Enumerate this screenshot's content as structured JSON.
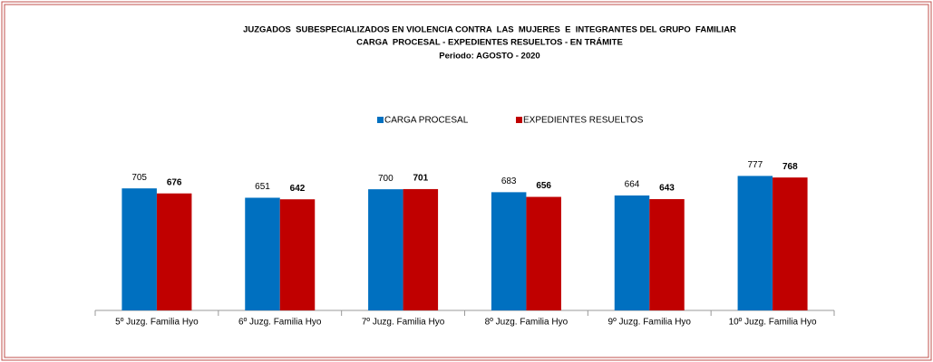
{
  "chart_data": {
    "type": "bar",
    "title": "JUZGADOS  SUBESPECIALIZADOS EN VIOLENCIA CONTRA  LAS  MUJERES  E  INTEGRANTES DEL GRUPO  FAMILIAR",
    "subtitle": "CARGA  PROCESAL - EXPEDIENTES RESUELTOS - EN TRÁMITE",
    "period": "Periodo: AGOSTO - 2020",
    "categories": [
      "5º Juzg. Familia Hyo",
      "6º Juzg. Familia Hyo",
      "7º Juzg. Familia Hyo",
      "8º Juzg. Familia Hyo",
      "9º Juzg. Familia Hyo",
      "10º Juzg. Familia Hyo"
    ],
    "series": [
      {
        "name": "CARGA PROCESAL",
        "color": "#0070c0",
        "values": [
          705,
          651,
          700,
          683,
          664,
          777
        ]
      },
      {
        "name": "EXPEDIENTES RESUELTOS",
        "color": "#c00000",
        "values": [
          676,
          642,
          701,
          656,
          643,
          768
        ]
      }
    ],
    "ylim": [
      0,
      800
    ],
    "legend": "top"
  }
}
